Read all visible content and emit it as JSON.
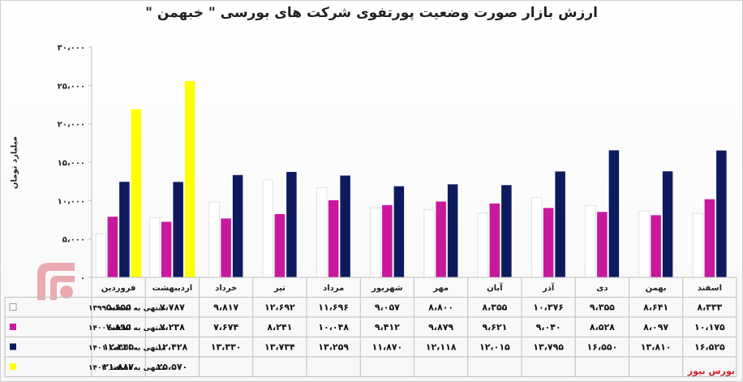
{
  "source": "بورس نیوز",
  "colors": {
    "s1399": "#ffffff",
    "s1400": "#c8189e",
    "s1401": "#0d1b5e",
    "s1402": "#ffff00",
    "watermark": "#d01c2a"
  },
  "chart_data": {
    "type": "bar",
    "title": "ارزش بازار صورت وضعیت پورتفوی شرکت های بورسی \" خبهمن \"",
    "ylabel": "میلیارد تومان",
    "ylim": [
      0,
      30000
    ],
    "yticks": [
      0,
      5000,
      10000,
      15000,
      20000,
      25000,
      30000
    ],
    "ytick_labels": [
      "۰",
      "۵،۰۰۰",
      "۱۰،۰۰۰",
      "۱۵،۰۰۰",
      "۲۰،۰۰۰",
      "۲۵،۰۰۰",
      "۳۰،۰۰۰"
    ],
    "grid": false,
    "legend": "table-left",
    "categories": [
      "فروردین",
      "اردیبهشت",
      "خرداد",
      "تیر",
      "مرداد",
      "شهریور",
      "مهر",
      "آبان",
      "آذر",
      "دی",
      "بهمن",
      "اسفند"
    ],
    "series": [
      {
        "name": "منتهی به اسفند ۱۳۹۹",
        "color_key": "s1399",
        "values": [
          5655,
          7787,
          9817,
          12692,
          11696,
          9057,
          8800,
          8355,
          10376,
          9355,
          8641,
          8333
        ],
        "labels": [
          "۵،۶۵۵",
          "۷،۷۸۷",
          "۹،۸۱۷",
          "۱۲،۶۹۲",
          "۱۱،۶۹۶",
          "۹،۰۵۷",
          "۸،۸۰۰",
          "۸،۳۵۵",
          "۱۰،۳۷۶",
          "۹،۳۵۵",
          "۸،۶۴۱",
          "۸،۳۳۳"
        ]
      },
      {
        "name": "منتهی به اسفند ۱۴۰۰",
        "color_key": "s1400",
        "values": [
          7895,
          7238,
          7674,
          8241,
          10048,
          9412,
          9879,
          9621,
          9040,
          8528,
          8097,
          10175
        ],
        "labels": [
          "۷،۸۹۵",
          "۷،۲۳۸",
          "۷،۶۷۴",
          "۸،۲۴۱",
          "۱۰،۰۴۸",
          "۹،۴۱۲",
          "۹،۸۷۹",
          "۹،۶۲۱",
          "۹،۰۴۰",
          "۸،۵۲۸",
          "۸،۰۹۷",
          "۱۰،۱۷۵"
        ]
      },
      {
        "name": "منتهی به اسفند ۱۴۰۱",
        "color_key": "s1401",
        "values": [
          12445,
          12428,
          13330,
          13734,
          13259,
          11870,
          12118,
          12015,
          13795,
          16550,
          13810,
          16525
        ],
        "labels": [
          "۱۲،۴۴۵",
          "۱۲،۴۲۸",
          "۱۳،۳۳۰",
          "۱۳،۷۳۴",
          "۱۳،۲۵۹",
          "۱۱،۸۷۰",
          "۱۲،۱۱۸",
          "۱۲،۰۱۵",
          "۱۳،۷۹۵",
          "۱۶،۵۵۰",
          "۱۳،۸۱۰",
          "۱۶،۵۲۵"
        ]
      },
      {
        "name": "منتهی به اسفند ۱۴۰۲",
        "color_key": "s1402",
        "values": [
          21887,
          25570,
          null,
          null,
          null,
          null,
          null,
          null,
          null,
          null,
          null,
          null
        ],
        "labels": [
          "۲۱،۸۸۷",
          "۲۵،۵۷۰",
          "",
          "",
          "",
          "",
          "",
          "",
          "",
          "",
          "",
          ""
        ]
      }
    ]
  }
}
